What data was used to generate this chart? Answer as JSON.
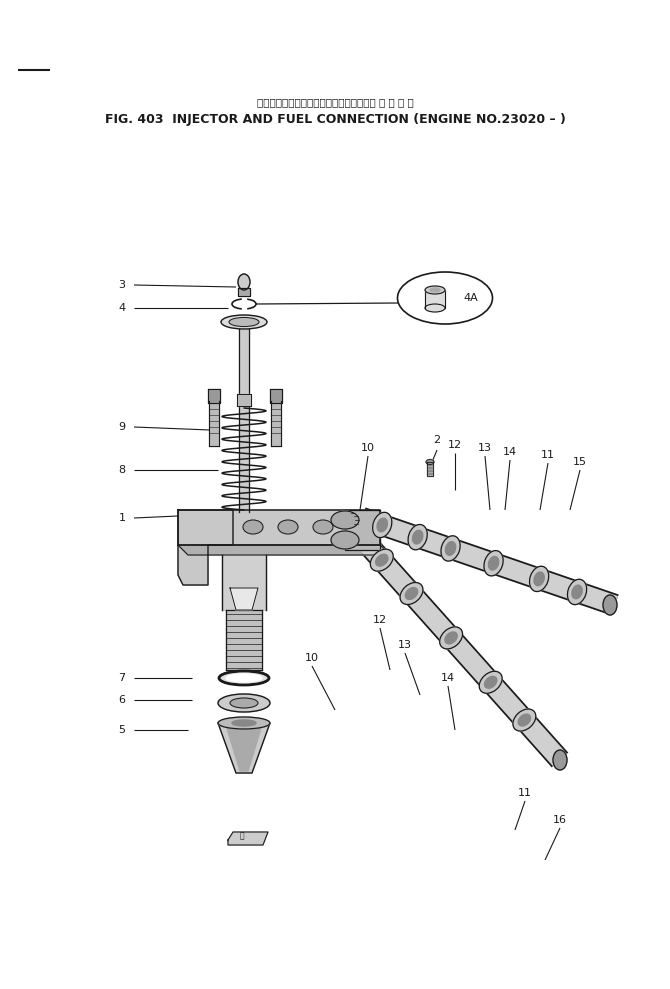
{
  "title_japanese": "インジェクタおよびフェルコネクション、 適 用 号 機",
  "title_english": "FIG. 403  INJECTOR AND FUEL CONNECTION (ENGINE NO.23020 – )",
  "background_color": "#ffffff",
  "line_color": "#1a1a1a",
  "fig_width": 6.7,
  "fig_height": 9.89,
  "dpi": 100
}
